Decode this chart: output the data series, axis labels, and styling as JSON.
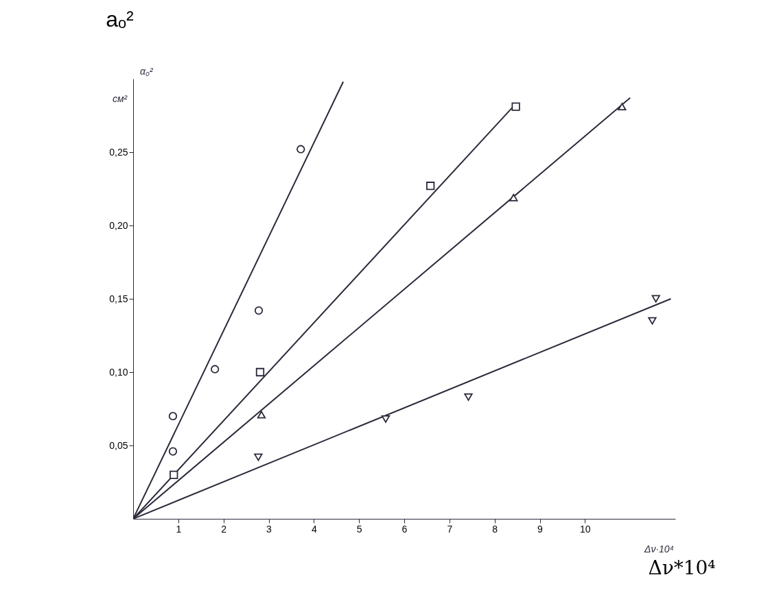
{
  "chart_data": {
    "type": "scatter",
    "xlabel": "Δν*10⁴",
    "ylabel": "aₒ²",
    "annotations": [
      "α₀²",
      "см²",
      "Δν·10⁴"
    ],
    "xlim": [
      0,
      12
    ],
    "ylim": [
      0,
      0.3
    ],
    "xticks": [
      1,
      2,
      3,
      4,
      5,
      6,
      7,
      8,
      9,
      10
    ],
    "yticks": [
      {
        "value": 0.05,
        "label": "0,05"
      },
      {
        "value": 0.1,
        "label": "0,10"
      },
      {
        "value": 0.15,
        "label": "0,15"
      },
      {
        "value": 0.2,
        "label": "0,20"
      },
      {
        "value": 0.25,
        "label": "0,25"
      }
    ],
    "grid": false,
    "series": [
      {
        "marker": "circle",
        "color": "#2a2a3a",
        "x": [
          0.88,
          0.88,
          1.81,
          2.78,
          3.71
        ],
        "values": [
          0.046,
          0.07,
          0.102,
          0.142,
          0.252
        ]
      },
      {
        "marker": "square",
        "color": "#2a2a3a",
        "x": [
          0.9,
          2.81,
          6.58,
          8.47
        ],
        "values": [
          0.03,
          0.1,
          0.227,
          0.281
        ]
      },
      {
        "marker": "triangle",
        "color": "#2a2a3a",
        "x": [
          2.84,
          8.42,
          10.82
        ],
        "values": [
          0.071,
          0.219,
          0.281
        ]
      },
      {
        "marker": "triangle-down",
        "color": "#2a2a3a",
        "x": [
          2.77,
          5.59,
          7.42,
          11.49,
          11.57
        ],
        "values": [
          0.042,
          0.068,
          0.083,
          0.135,
          0.15
        ]
      },
      {
        "type": "line",
        "marker": "none",
        "color": "#2a2a3a",
        "x": [
          0,
          4.65
        ],
        "values": [
          0,
          0.298
        ]
      },
      {
        "type": "line",
        "marker": "none",
        "color": "#2a2a3a",
        "x": [
          0,
          8.47
        ],
        "values": [
          0,
          0.283
        ]
      },
      {
        "type": "line",
        "marker": "none",
        "color": "#2a2a3a",
        "x": [
          0,
          11.0
        ],
        "values": [
          0,
          0.287
        ]
      },
      {
        "type": "line",
        "marker": "none",
        "color": "#2a2a3a",
        "x": [
          0,
          11.9
        ],
        "values": [
          0,
          0.15
        ]
      }
    ]
  }
}
